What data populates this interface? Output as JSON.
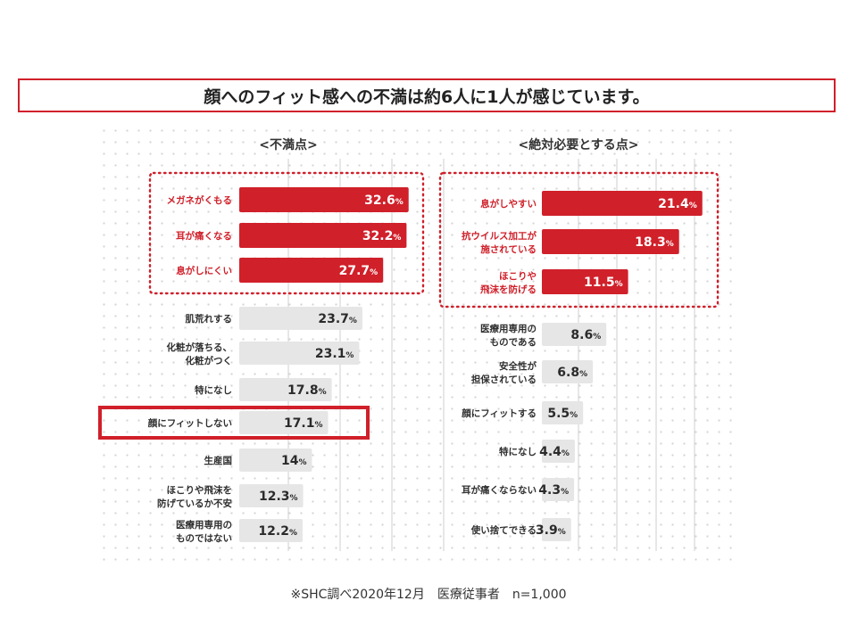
{
  "headline": "顔へのフィット感への不満は約6人に1人が感じています。",
  "footnote": "※SHC調べ2020年12月　医療従事者　n=1,000",
  "colors": {
    "accent": "#d0202a",
    "bar_gray": "#e6e6e6",
    "label_text": "#2f2f2f",
    "value_white": "#ffffff"
  },
  "chart_data": [
    {
      "type": "bar",
      "orientation": "horizontal",
      "title": "<不満点>",
      "unit": "%",
      "categories": [
        [
          "メガネがくもる"
        ],
        [
          "耳が痛くなる"
        ],
        [
          "息がしにくい"
        ],
        [
          "肌荒れする"
        ],
        [
          "化粧が落ちる、",
          "化粧がつく"
        ],
        [
          "特になし"
        ],
        [
          "顔にフィットしない"
        ],
        [
          "生産国"
        ],
        [
          "ほこりや飛沫を",
          "防げているか不安"
        ],
        [
          "医療用専用の",
          "ものではない"
        ]
      ],
      "values": [
        32.6,
        32.2,
        27.7,
        23.7,
        23.1,
        17.8,
        17.1,
        14,
        12.3,
        12.2
      ],
      "value_labels": [
        "32.6",
        "32.2",
        "27.7",
        "23.7",
        "23.1",
        "17.8",
        "17.1",
        "14",
        "12.3",
        "12.2"
      ],
      "highlighted_top": 3,
      "boxed_category": "顔にフィットしない"
    },
    {
      "type": "bar",
      "orientation": "horizontal",
      "title": "<絶対必要とする点>",
      "unit": "%",
      "categories": [
        [
          "息がしやすい"
        ],
        [
          "抗ウイルス加工が",
          "施されている"
        ],
        [
          "ほこりや",
          "飛沫を防げる"
        ],
        [
          "医療用専用の",
          "ものである"
        ],
        [
          "安全性が",
          "担保されている"
        ],
        [
          "顔にフィットする"
        ],
        [
          "特になし"
        ],
        [
          "耳が痛くならない"
        ],
        [
          "使い捨てできる"
        ]
      ],
      "values": [
        21.4,
        18.3,
        11.5,
        8.6,
        6.8,
        5.5,
        4.4,
        4.3,
        3.9
      ],
      "value_labels": [
        "21.4",
        "18.3",
        "11.5",
        "8.6",
        "6.8",
        "5.5",
        "4.4",
        "4.3",
        "3.9"
      ],
      "highlighted_top": 3
    }
  ]
}
